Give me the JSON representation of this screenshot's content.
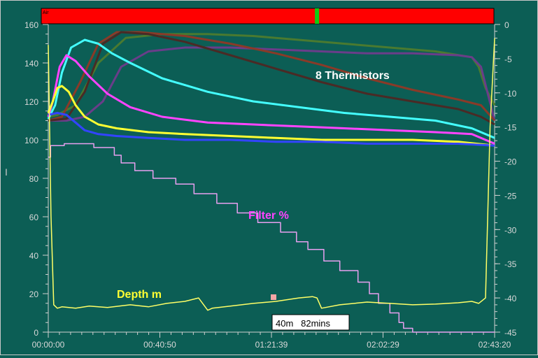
{
  "chart_data": {
    "type": "line",
    "x_ticks": [
      "00:00:00",
      "00:40:50",
      "01:21:39",
      "02:02:29",
      "02:43:20"
    ],
    "x_range_seconds": [
      0,
      9800
    ],
    "left_axis": {
      "ylim": [
        0,
        160
      ],
      "ticks": [
        "0",
        "20",
        "40",
        "60",
        "80",
        "100",
        "120",
        "140",
        "160"
      ]
    },
    "right_axis": {
      "ylim": [
        -45,
        0
      ],
      "ticks": [
        "0",
        "-5",
        "-10",
        "-15",
        "-20",
        "-25",
        "-30",
        "-35",
        "-40",
        "-45"
      ]
    },
    "annotations": {
      "thermistors": "8 Thermistors",
      "filter": "Filter %",
      "depth": "Depth m",
      "callout": "40m   82mins"
    },
    "status_bar": {
      "label": "Air",
      "color": "#ff0000",
      "marker_color": "#11cc11",
      "marker_x": 5900
    },
    "colors": {
      "background": "#0c5e55",
      "thermistor_yellow": "#ffff33",
      "thermistor_magenta": "#ff44ff",
      "thermistor_cyan": "#44ffff",
      "thermistor_blue": "#3344ff",
      "thermistor_olive": "#4a7a30",
      "thermistor_purple": "#6a3d8a",
      "thermistor_brown": "#8a3a28",
      "thermistor_darkred": "#4a2a25",
      "filter": "#e8a0f0",
      "depth": "#ffff66"
    },
    "series": [
      {
        "axis": "left",
        "color": "thermistor_olive",
        "x": [
          0,
          200,
          600,
          1100,
          1700,
          2500,
          3500,
          4500,
          5500,
          6500,
          7500,
          8500,
          9300,
          9450,
          9600,
          9800
        ],
        "values": [
          112,
          113,
          118,
          140,
          153,
          155,
          155,
          154,
          152,
          150,
          148,
          146,
          143,
          138,
          127,
          118
        ]
      },
      {
        "axis": "left",
        "color": "thermistor_purple",
        "x": [
          0,
          400,
          800,
          1200,
          1600,
          2200,
          3000,
          4000,
          5000,
          6000,
          7000,
          8000,
          9000,
          9300,
          9500,
          9800
        ],
        "values": [
          110,
          110,
          112,
          120,
          138,
          146,
          148,
          148,
          147,
          146,
          145,
          145,
          144,
          143,
          138,
          110
        ]
      },
      {
        "axis": "left",
        "color": "thermistor_brown",
        "x": [
          0,
          300,
          700,
          1100,
          1500,
          2000,
          3000,
          4000,
          5000,
          6000,
          7000,
          8000,
          9000,
          9500,
          9800
        ],
        "values": [
          110,
          112,
          130,
          150,
          156,
          156,
          154,
          150,
          145,
          139,
          132,
          126,
          121,
          118,
          110
        ]
      },
      {
        "axis": "left",
        "color": "thermistor_darkred",
        "x": [
          0,
          400,
          800,
          1200,
          1600,
          2200,
          3000,
          4000,
          5000,
          6000,
          7000,
          8000,
          9000,
          9500,
          9800
        ],
        "values": [
          110,
          111,
          125,
          150,
          156,
          155,
          151,
          144,
          137,
          130,
          124,
          120,
          116,
          112,
          108
        ]
      },
      {
        "axis": "left",
        "color": "thermistor_cyan",
        "x": [
          0,
          150,
          300,
          500,
          800,
          1100,
          1400,
          1800,
          2500,
          3500,
          4500,
          5500,
          6500,
          7500,
          8500,
          9300,
          9800
        ],
        "values": [
          111,
          118,
          135,
          148,
          152,
          150,
          145,
          140,
          132,
          125,
          120,
          117,
          114,
          112,
          110,
          106,
          101
        ]
      },
      {
        "axis": "left",
        "color": "thermistor_magenta",
        "x": [
          0,
          100,
          250,
          400,
          600,
          900,
          1300,
          1800,
          2500,
          3500,
          4500,
          5500,
          6500,
          7500,
          8500,
          9300,
          9800
        ],
        "values": [
          112,
          120,
          138,
          144,
          141,
          133,
          124,
          117,
          112,
          109,
          108,
          107,
          106,
          105,
          104,
          103,
          98
        ]
      },
      {
        "axis": "left",
        "color": "thermistor_yellow",
        "x": [
          0,
          100,
          200,
          300,
          450,
          600,
          800,
          1100,
          1500,
          2200,
          3000,
          4000,
          5000,
          6000,
          7000,
          8000,
          9000,
          9800
        ],
        "values": [
          114,
          120,
          127,
          128,
          125,
          118,
          112,
          108,
          106,
          104,
          103,
          102,
          101,
          100,
          100,
          100,
          99,
          97
        ]
      },
      {
        "axis": "left",
        "color": "thermistor_blue",
        "x": [
          0,
          200,
          400,
          600,
          800,
          1100,
          1500,
          2200,
          3000,
          4000,
          5000,
          6000,
          7000,
          8000,
          9000,
          9800
        ],
        "values": [
          113,
          114,
          113,
          109,
          105,
          103,
          102,
          101,
          100,
          100,
          99,
          99,
          98,
          98,
          98,
          97
        ]
      },
      {
        "axis": "left",
        "color": "filter",
        "step": true,
        "x": [
          0,
          50,
          350,
          1000,
          1450,
          1600,
          1900,
          2300,
          2800,
          3200,
          3700,
          4150,
          4600,
          5100,
          5450,
          5700,
          6050,
          6400,
          6800,
          7050,
          7250,
          7500,
          7700,
          7800,
          8000,
          8400,
          9800
        ],
        "values": [
          91,
          97,
          98,
          96,
          92,
          88,
          84,
          80,
          77,
          72,
          67,
          62,
          57,
          52,
          47,
          43,
          37,
          32,
          26,
          20,
          15,
          10,
          5,
          2,
          0,
          0,
          0
        ]
      },
      {
        "axis": "right",
        "color": "depth",
        "x": [
          0,
          60,
          120,
          200,
          300,
          600,
          900,
          1300,
          1800,
          2200,
          2600,
          3000,
          3300,
          3500,
          3600,
          4000,
          4500,
          5000,
          5500,
          5800,
          5900,
          6000,
          6400,
          7000,
          7500,
          8000,
          8500,
          9000,
          9300,
          9450,
          9600,
          9700,
          9800
        ],
        "values": [
          -3,
          -28,
          -41,
          -41.5,
          -41.3,
          -41.5,
          -41.2,
          -41.4,
          -41,
          -41.3,
          -40.8,
          -40.5,
          -40,
          -41.8,
          -41.5,
          -41.2,
          -40.8,
          -40.5,
          -40,
          -39.8,
          -40,
          -41.5,
          -41,
          -40.6,
          -40.8,
          -41,
          -40.9,
          -40.7,
          -40.5,
          -40.8,
          -40,
          -15,
          -2
        ]
      }
    ]
  }
}
